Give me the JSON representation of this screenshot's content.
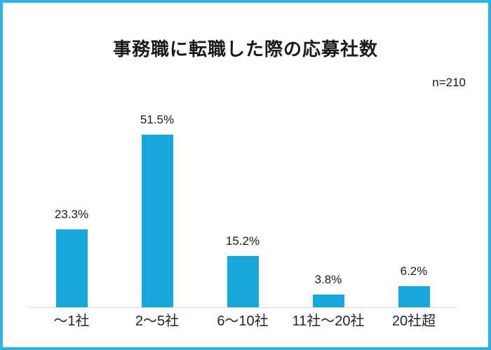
{
  "chart_data": {
    "type": "bar",
    "title": "事務職に転職した際の応募社数",
    "annotation": "n=210",
    "categories": [
      "～1社",
      "2～5社",
      "6～10社",
      "11社～20社",
      "20社超"
    ],
    "values": [
      23.3,
      51.5,
      15.2,
      3.8,
      6.2
    ],
    "value_labels": [
      "23.3%",
      "51.5%",
      "15.2%",
      "3.8%",
      "6.2%"
    ],
    "unit": "%",
    "ylim": [
      0,
      55
    ],
    "grid": false,
    "legend": false,
    "bar_color": "#17a7da",
    "frame_color": "#2eb2e2",
    "axis_line_color": "#d9d9d9"
  }
}
